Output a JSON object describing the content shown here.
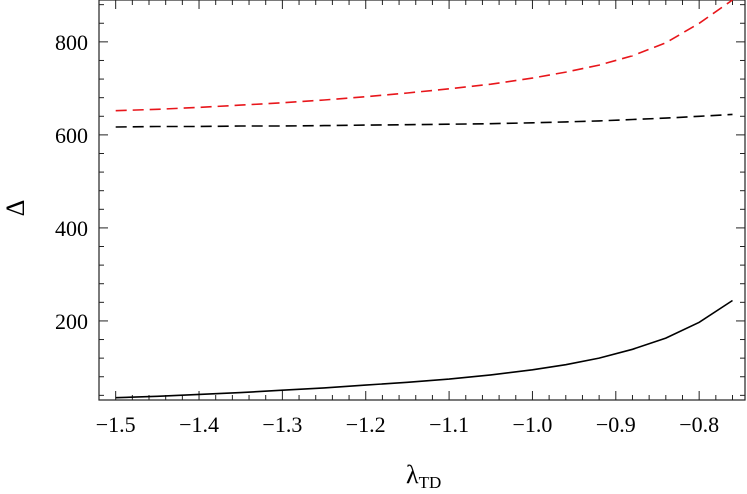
{
  "chart_data": {
    "type": "line",
    "title": "",
    "xlabel": "λ",
    "xlabel_subscript": "TD",
    "ylabel": "Δ",
    "xlim": [
      -1.52,
      -0.745
    ],
    "ylim": [
      30,
      890
    ],
    "xticks": [
      -1.5,
      -1.4,
      -1.3,
      -1.2,
      -1.1,
      -1.0,
      -0.9,
      -0.8
    ],
    "xtick_labels": [
      "−1.5",
      "−1.4",
      "−1.3",
      "−1.2",
      "−1.1",
      "−1.0",
      "−0.9",
      "−0.8"
    ],
    "yticks": [
      200,
      400,
      600,
      800
    ],
    "ytick_labels": [
      "200",
      "400",
      "600",
      "800"
    ],
    "grid": false,
    "legend": "none",
    "x": [
      -1.5,
      -1.45,
      -1.4,
      -1.35,
      -1.3,
      -1.25,
      -1.2,
      -1.15,
      -1.1,
      -1.05,
      -1.0,
      -0.96,
      -0.92,
      -0.88,
      -0.84,
      -0.8,
      -0.76
    ],
    "series": [
      {
        "style": "dashed",
        "color": "#e8161b",
        "values": [
          652,
          655,
          659,
          664,
          669,
          675,
          682,
          690,
          699,
          709,
          722,
          735,
          750,
          770,
          798,
          840,
          890
        ]
      },
      {
        "style": "dashed",
        "color": "#000000",
        "values": [
          617,
          618,
          618,
          619,
          619,
          620,
          621,
          622,
          623,
          624,
          626,
          628,
          630,
          633,
          636,
          640,
          644
        ]
      },
      {
        "style": "solid",
        "color": "#000000",
        "values": [
          35,
          38,
          42,
          46,
          51,
          56,
          62,
          68,
          75,
          84,
          95,
          106,
          120,
          139,
          163,
          197,
          244
        ]
      }
    ]
  }
}
